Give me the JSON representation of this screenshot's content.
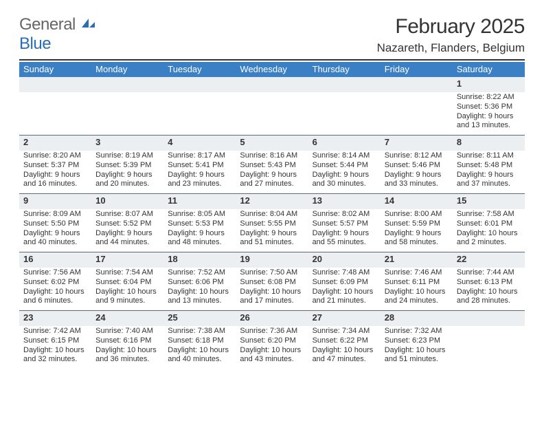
{
  "brand": {
    "word1": "General",
    "word2": "Blue"
  },
  "colors": {
    "brand_blue": "#2a6fb5",
    "header_blue": "#3b80c4",
    "daynum_bg": "#eceff2",
    "rule": "#5a6a7a",
    "topline": "#333333",
    "text": "#333333",
    "white": "#ffffff"
  },
  "title": {
    "month": "February 2025",
    "location": "Nazareth, Flanders, Belgium"
  },
  "dow": [
    "Sunday",
    "Monday",
    "Tuesday",
    "Wednesday",
    "Thursday",
    "Friday",
    "Saturday"
  ],
  "weeks": [
    [
      {
        "n": "",
        "sunrise": "",
        "sunset": "",
        "daylight": ""
      },
      {
        "n": "",
        "sunrise": "",
        "sunset": "",
        "daylight": ""
      },
      {
        "n": "",
        "sunrise": "",
        "sunset": "",
        "daylight": ""
      },
      {
        "n": "",
        "sunrise": "",
        "sunset": "",
        "daylight": ""
      },
      {
        "n": "",
        "sunrise": "",
        "sunset": "",
        "daylight": ""
      },
      {
        "n": "",
        "sunrise": "",
        "sunset": "",
        "daylight": ""
      },
      {
        "n": "1",
        "sunrise": "Sunrise: 8:22 AM",
        "sunset": "Sunset: 5:36 PM",
        "daylight": "Daylight: 9 hours and 13 minutes."
      }
    ],
    [
      {
        "n": "2",
        "sunrise": "Sunrise: 8:20 AM",
        "sunset": "Sunset: 5:37 PM",
        "daylight": "Daylight: 9 hours and 16 minutes."
      },
      {
        "n": "3",
        "sunrise": "Sunrise: 8:19 AM",
        "sunset": "Sunset: 5:39 PM",
        "daylight": "Daylight: 9 hours and 20 minutes."
      },
      {
        "n": "4",
        "sunrise": "Sunrise: 8:17 AM",
        "sunset": "Sunset: 5:41 PM",
        "daylight": "Daylight: 9 hours and 23 minutes."
      },
      {
        "n": "5",
        "sunrise": "Sunrise: 8:16 AM",
        "sunset": "Sunset: 5:43 PM",
        "daylight": "Daylight: 9 hours and 27 minutes."
      },
      {
        "n": "6",
        "sunrise": "Sunrise: 8:14 AM",
        "sunset": "Sunset: 5:44 PM",
        "daylight": "Daylight: 9 hours and 30 minutes."
      },
      {
        "n": "7",
        "sunrise": "Sunrise: 8:12 AM",
        "sunset": "Sunset: 5:46 PM",
        "daylight": "Daylight: 9 hours and 33 minutes."
      },
      {
        "n": "8",
        "sunrise": "Sunrise: 8:11 AM",
        "sunset": "Sunset: 5:48 PM",
        "daylight": "Daylight: 9 hours and 37 minutes."
      }
    ],
    [
      {
        "n": "9",
        "sunrise": "Sunrise: 8:09 AM",
        "sunset": "Sunset: 5:50 PM",
        "daylight": "Daylight: 9 hours and 40 minutes."
      },
      {
        "n": "10",
        "sunrise": "Sunrise: 8:07 AM",
        "sunset": "Sunset: 5:52 PM",
        "daylight": "Daylight: 9 hours and 44 minutes."
      },
      {
        "n": "11",
        "sunrise": "Sunrise: 8:05 AM",
        "sunset": "Sunset: 5:53 PM",
        "daylight": "Daylight: 9 hours and 48 minutes."
      },
      {
        "n": "12",
        "sunrise": "Sunrise: 8:04 AM",
        "sunset": "Sunset: 5:55 PM",
        "daylight": "Daylight: 9 hours and 51 minutes."
      },
      {
        "n": "13",
        "sunrise": "Sunrise: 8:02 AM",
        "sunset": "Sunset: 5:57 PM",
        "daylight": "Daylight: 9 hours and 55 minutes."
      },
      {
        "n": "14",
        "sunrise": "Sunrise: 8:00 AM",
        "sunset": "Sunset: 5:59 PM",
        "daylight": "Daylight: 9 hours and 58 minutes."
      },
      {
        "n": "15",
        "sunrise": "Sunrise: 7:58 AM",
        "sunset": "Sunset: 6:01 PM",
        "daylight": "Daylight: 10 hours and 2 minutes."
      }
    ],
    [
      {
        "n": "16",
        "sunrise": "Sunrise: 7:56 AM",
        "sunset": "Sunset: 6:02 PM",
        "daylight": "Daylight: 10 hours and 6 minutes."
      },
      {
        "n": "17",
        "sunrise": "Sunrise: 7:54 AM",
        "sunset": "Sunset: 6:04 PM",
        "daylight": "Daylight: 10 hours and 9 minutes."
      },
      {
        "n": "18",
        "sunrise": "Sunrise: 7:52 AM",
        "sunset": "Sunset: 6:06 PM",
        "daylight": "Daylight: 10 hours and 13 minutes."
      },
      {
        "n": "19",
        "sunrise": "Sunrise: 7:50 AM",
        "sunset": "Sunset: 6:08 PM",
        "daylight": "Daylight: 10 hours and 17 minutes."
      },
      {
        "n": "20",
        "sunrise": "Sunrise: 7:48 AM",
        "sunset": "Sunset: 6:09 PM",
        "daylight": "Daylight: 10 hours and 21 minutes."
      },
      {
        "n": "21",
        "sunrise": "Sunrise: 7:46 AM",
        "sunset": "Sunset: 6:11 PM",
        "daylight": "Daylight: 10 hours and 24 minutes."
      },
      {
        "n": "22",
        "sunrise": "Sunrise: 7:44 AM",
        "sunset": "Sunset: 6:13 PM",
        "daylight": "Daylight: 10 hours and 28 minutes."
      }
    ],
    [
      {
        "n": "23",
        "sunrise": "Sunrise: 7:42 AM",
        "sunset": "Sunset: 6:15 PM",
        "daylight": "Daylight: 10 hours and 32 minutes."
      },
      {
        "n": "24",
        "sunrise": "Sunrise: 7:40 AM",
        "sunset": "Sunset: 6:16 PM",
        "daylight": "Daylight: 10 hours and 36 minutes."
      },
      {
        "n": "25",
        "sunrise": "Sunrise: 7:38 AM",
        "sunset": "Sunset: 6:18 PM",
        "daylight": "Daylight: 10 hours and 40 minutes."
      },
      {
        "n": "26",
        "sunrise": "Sunrise: 7:36 AM",
        "sunset": "Sunset: 6:20 PM",
        "daylight": "Daylight: 10 hours and 43 minutes."
      },
      {
        "n": "27",
        "sunrise": "Sunrise: 7:34 AM",
        "sunset": "Sunset: 6:22 PM",
        "daylight": "Daylight: 10 hours and 47 minutes."
      },
      {
        "n": "28",
        "sunrise": "Sunrise: 7:32 AM",
        "sunset": "Sunset: 6:23 PM",
        "daylight": "Daylight: 10 hours and 51 minutes."
      },
      {
        "n": "",
        "sunrise": "",
        "sunset": "",
        "daylight": ""
      }
    ]
  ]
}
